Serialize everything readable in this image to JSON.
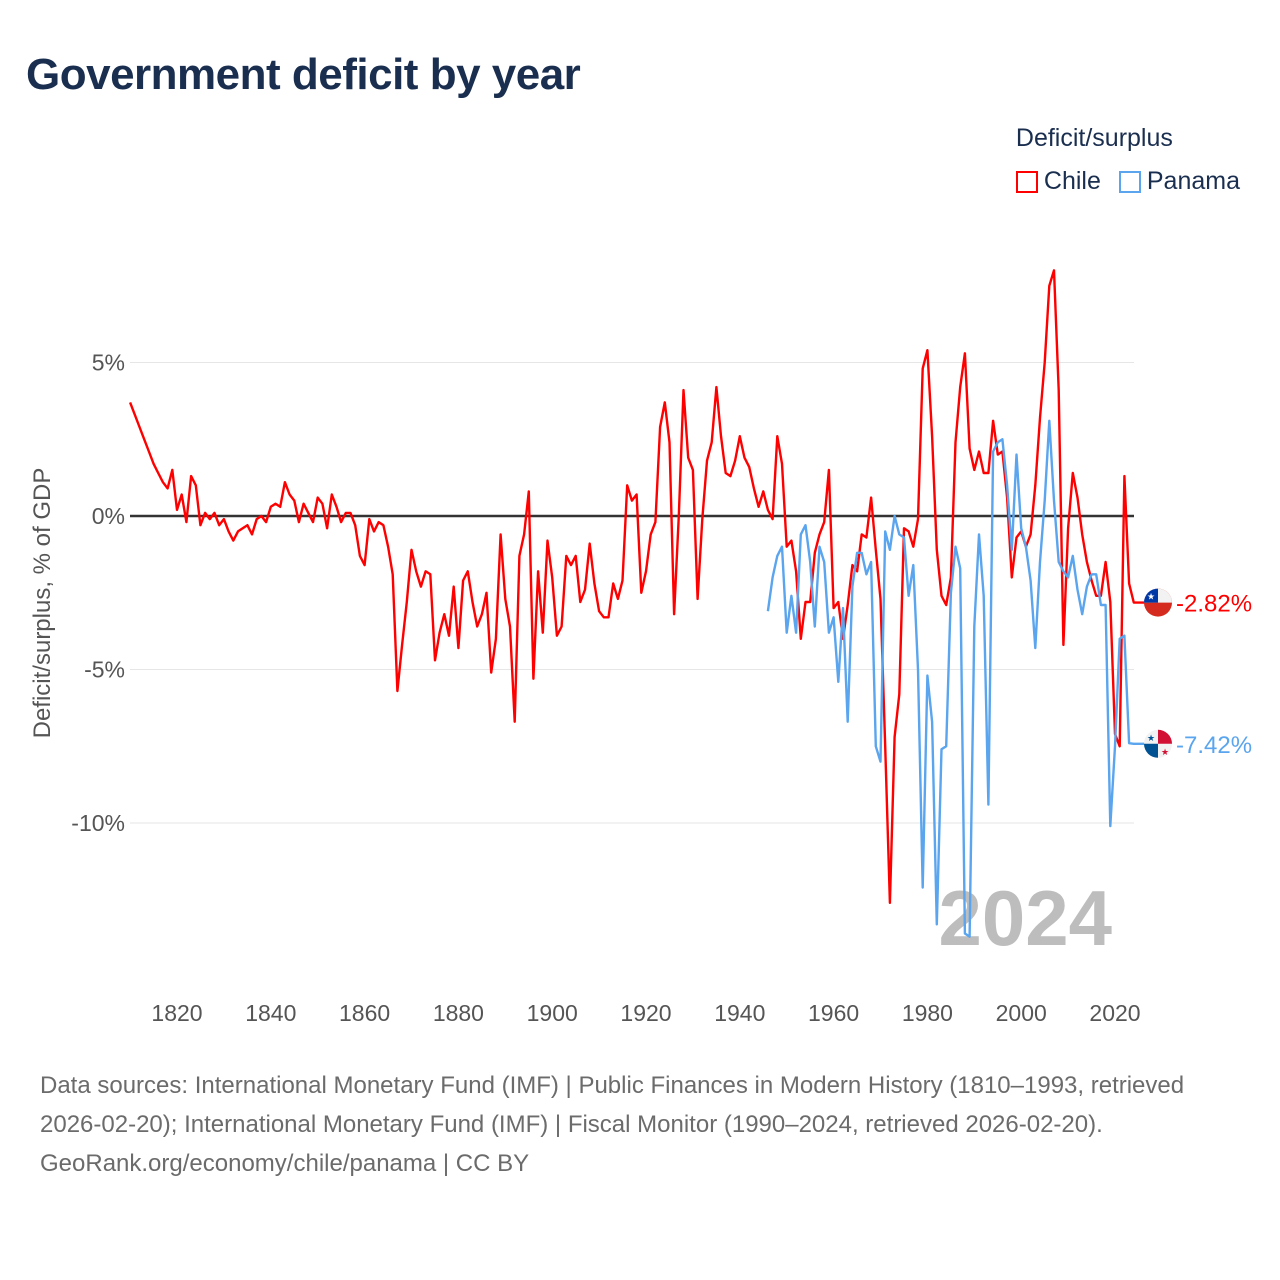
{
  "title": "Government deficit by year",
  "legend": {
    "title": "Deficit/surplus",
    "items": [
      {
        "label": "Chile",
        "color": "#ff0000"
      },
      {
        "label": "Panama",
        "color": "#5aa5ee"
      }
    ]
  },
  "year_watermark": "2024",
  "end_labels": {
    "chile": "-2.82%",
    "panama": "-7.42%"
  },
  "footer": {
    "sources": "Data sources: International Monetary Fund (IMF) | Public Finances in Modern History (1810–1993, retrieved 2026-02-20); International Monetary Fund (IMF) | Fiscal Monitor (1990–2024, retrieved 2026-02-20).",
    "credit": "GeoRank.org/economy/chile/panama | CC BY"
  },
  "chart_data": {
    "type": "line",
    "title": "Government deficit by year",
    "xlabel": "",
    "ylabel": "Deficit/surplus, % of GDP",
    "xlim": [
      1810,
      2024
    ],
    "ylim": [
      -14,
      9
    ],
    "xticks": [
      1820,
      1840,
      1860,
      1880,
      1900,
      1920,
      1940,
      1960,
      1980,
      2000,
      2020
    ],
    "xtick_labels": [
      "1820",
      "1840",
      "1860",
      "1880",
      "1900",
      "1920",
      "1940",
      "1960",
      "1980",
      "2000",
      "2020"
    ],
    "yticks": [
      5,
      0,
      -5,
      -10
    ],
    "ytick_labels": [
      "5%",
      "0%",
      "-5%",
      "-10%"
    ],
    "grid": true,
    "legend_position": "top-right",
    "series": [
      {
        "name": "Chile",
        "color": "#ff0000",
        "start_year": 1810,
        "values": [
          3.7,
          3.3,
          2.9,
          2.5,
          2.1,
          1.7,
          1.4,
          1.1,
          0.9,
          1.5,
          0.2,
          0.7,
          -0.2,
          1.3,
          1.0,
          -0.3,
          0.1,
          -0.1,
          0.1,
          -0.3,
          -0.1,
          -0.5,
          -0.8,
          -0.5,
          -0.4,
          -0.3,
          -0.6,
          -0.1,
          0.0,
          -0.2,
          0.3,
          0.4,
          0.3,
          1.1,
          0.7,
          0.5,
          -0.2,
          0.4,
          0.1,
          -0.2,
          0.6,
          0.4,
          -0.4,
          0.7,
          0.3,
          -0.2,
          0.1,
          0.1,
          -0.3,
          -1.3,
          -1.6,
          -0.1,
          -0.5,
          -0.2,
          -0.3,
          -1.0,
          -1.9,
          -5.7,
          -4.2,
          -2.8,
          -1.1,
          -1.8,
          -2.3,
          -1.8,
          -1.9,
          -4.7,
          -3.8,
          -3.2,
          -3.9,
          -2.3,
          -4.3,
          -2.1,
          -1.8,
          -2.8,
          -3.6,
          -3.2,
          -2.5,
          -5.1,
          -4.0,
          -0.6,
          -2.7,
          -3.6,
          -6.7,
          -1.3,
          -0.6,
          0.8,
          -5.3,
          -1.8,
          -3.8,
          -0.8,
          -2.0,
          -3.9,
          -3.6,
          -1.3,
          -1.6,
          -1.3,
          -2.8,
          -2.4,
          -0.9,
          -2.2,
          -3.1,
          -3.3,
          -3.3,
          -2.2,
          -2.7,
          -2.1,
          1.0,
          0.5,
          0.7,
          -2.5,
          -1.8,
          -0.6,
          -0.2,
          2.9,
          3.7,
          2.4,
          -3.2,
          0.0,
          4.1,
          1.9,
          1.5,
          -2.7,
          -0.1,
          1.8,
          2.4,
          4.2,
          2.6,
          1.4,
          1.3,
          1.8,
          2.6,
          1.9,
          1.6,
          0.9,
          0.3,
          0.8,
          0.2,
          -0.1,
          2.6,
          1.7,
          -1.0,
          -0.8,
          -1.8,
          -4.0,
          -2.8,
          -2.8,
          -1.2,
          -0.6,
          -0.2,
          1.5,
          -3.0,
          -2.8,
          -4.0,
          -2.9,
          -1.6,
          -1.8,
          -0.6,
          -0.7,
          0.6,
          -1.1,
          -2.7,
          -7.5,
          -12.6,
          -7.2,
          -5.8,
          -0.4,
          -0.5,
          -1.0,
          -0.1,
          4.8,
          5.4,
          2.6,
          -1.1,
          -2.6,
          -2.9,
          -2.0,
          2.4,
          4.2,
          5.3,
          2.2,
          1.5,
          2.1,
          1.4,
          1.4,
          3.1,
          2.0,
          2.1,
          0.6,
          -2.0,
          -0.7,
          -0.5,
          -1.0,
          -0.6,
          1.0,
          3.2,
          5.0,
          7.5,
          8.0,
          4.1,
          -4.2,
          -0.4,
          1.4,
          0.6,
          -0.6,
          -1.5,
          -2.1,
          -2.6,
          -2.6,
          -1.5,
          -2.8,
          -7.1,
          -7.5,
          1.3,
          -2.2,
          -2.82
        ]
      },
      {
        "name": "Panama",
        "color": "#5aa5ee",
        "start_year": 1946,
        "values": [
          -3.1,
          -2.0,
          -1.3,
          -1.0,
          -3.8,
          -2.6,
          -3.8,
          -0.6,
          -0.3,
          -1.5,
          -3.6,
          -1.0,
          -1.5,
          -3.8,
          -3.3,
          -5.4,
          -3.0,
          -6.7,
          -2.3,
          -1.2,
          -1.2,
          -1.9,
          -1.5,
          -7.5,
          -8.0,
          -0.5,
          -1.1,
          0.0,
          -0.6,
          -0.7,
          -2.6,
          -1.6,
          -5.0,
          -12.1,
          -5.2,
          -6.7,
          -13.3,
          -7.6,
          -7.5,
          -2.5,
          -1.0,
          -1.7,
          -13.6,
          -13.7,
          -3.6,
          -0.6,
          -2.6,
          -9.4,
          2.1,
          2.4,
          2.5,
          1.0,
          -1.1,
          2.0,
          -0.4,
          -1.0,
          -2.1,
          -4.3,
          -1.5,
          0.5,
          3.1,
          0.5,
          -1.5,
          -1.8,
          -2.0,
          -1.3,
          -2.4,
          -3.2,
          -2.3,
          -1.9,
          -1.9,
          -2.9,
          -2.9,
          -10.1,
          -7.5,
          -4.0,
          -3.9,
          -7.4,
          -7.42
        ]
      }
    ]
  }
}
